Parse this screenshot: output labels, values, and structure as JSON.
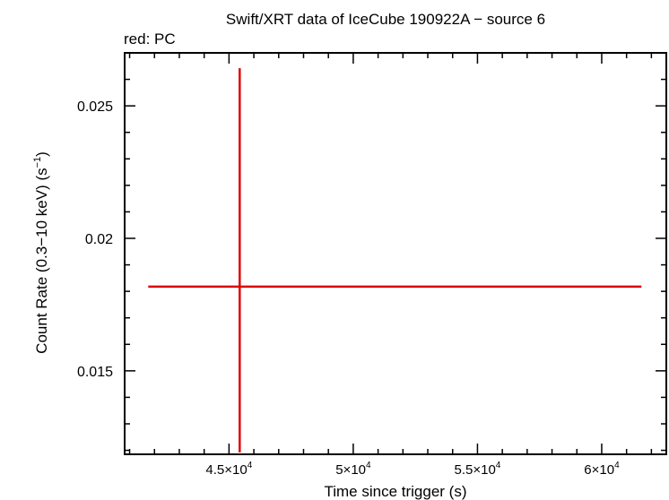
{
  "chart_data": {
    "type": "scatter",
    "title": "Swift/XRT data of IceCube 190922A − source 6",
    "subtitle": "red: PC",
    "xlabel": "Time since trigger (s)",
    "ylabel_main": "Count Rate (0.3−10 keV) (s",
    "ylabel_sup": "−1",
    "ylabel_close": ")",
    "xlim": [
      40800,
      62600
    ],
    "ylim": [
      0.01185,
      0.027
    ],
    "x_ticks": [
      {
        "value": 45000,
        "mantissa": "4.5×10",
        "exp": "4"
      },
      {
        "value": 50000,
        "mantissa": "5×10",
        "exp": "4"
      },
      {
        "value": 55000,
        "mantissa": "5.5×10",
        "exp": "4"
      },
      {
        "value": 60000,
        "mantissa": "6×10",
        "exp": "4"
      }
    ],
    "y_ticks": [
      {
        "value": 0.015,
        "label": "0.015"
      },
      {
        "value": 0.02,
        "label": "0.02"
      },
      {
        "value": 0.025,
        "label": "0.025"
      }
    ],
    "series": [
      {
        "color": "#e00000",
        "points": [
          {
            "x": 45430,
            "x_lo": 41750,
            "x_hi": 61600,
            "y": 0.01818,
            "y_lo": 0.01192,
            "y_hi": 0.02642
          }
        ]
      }
    ]
  }
}
